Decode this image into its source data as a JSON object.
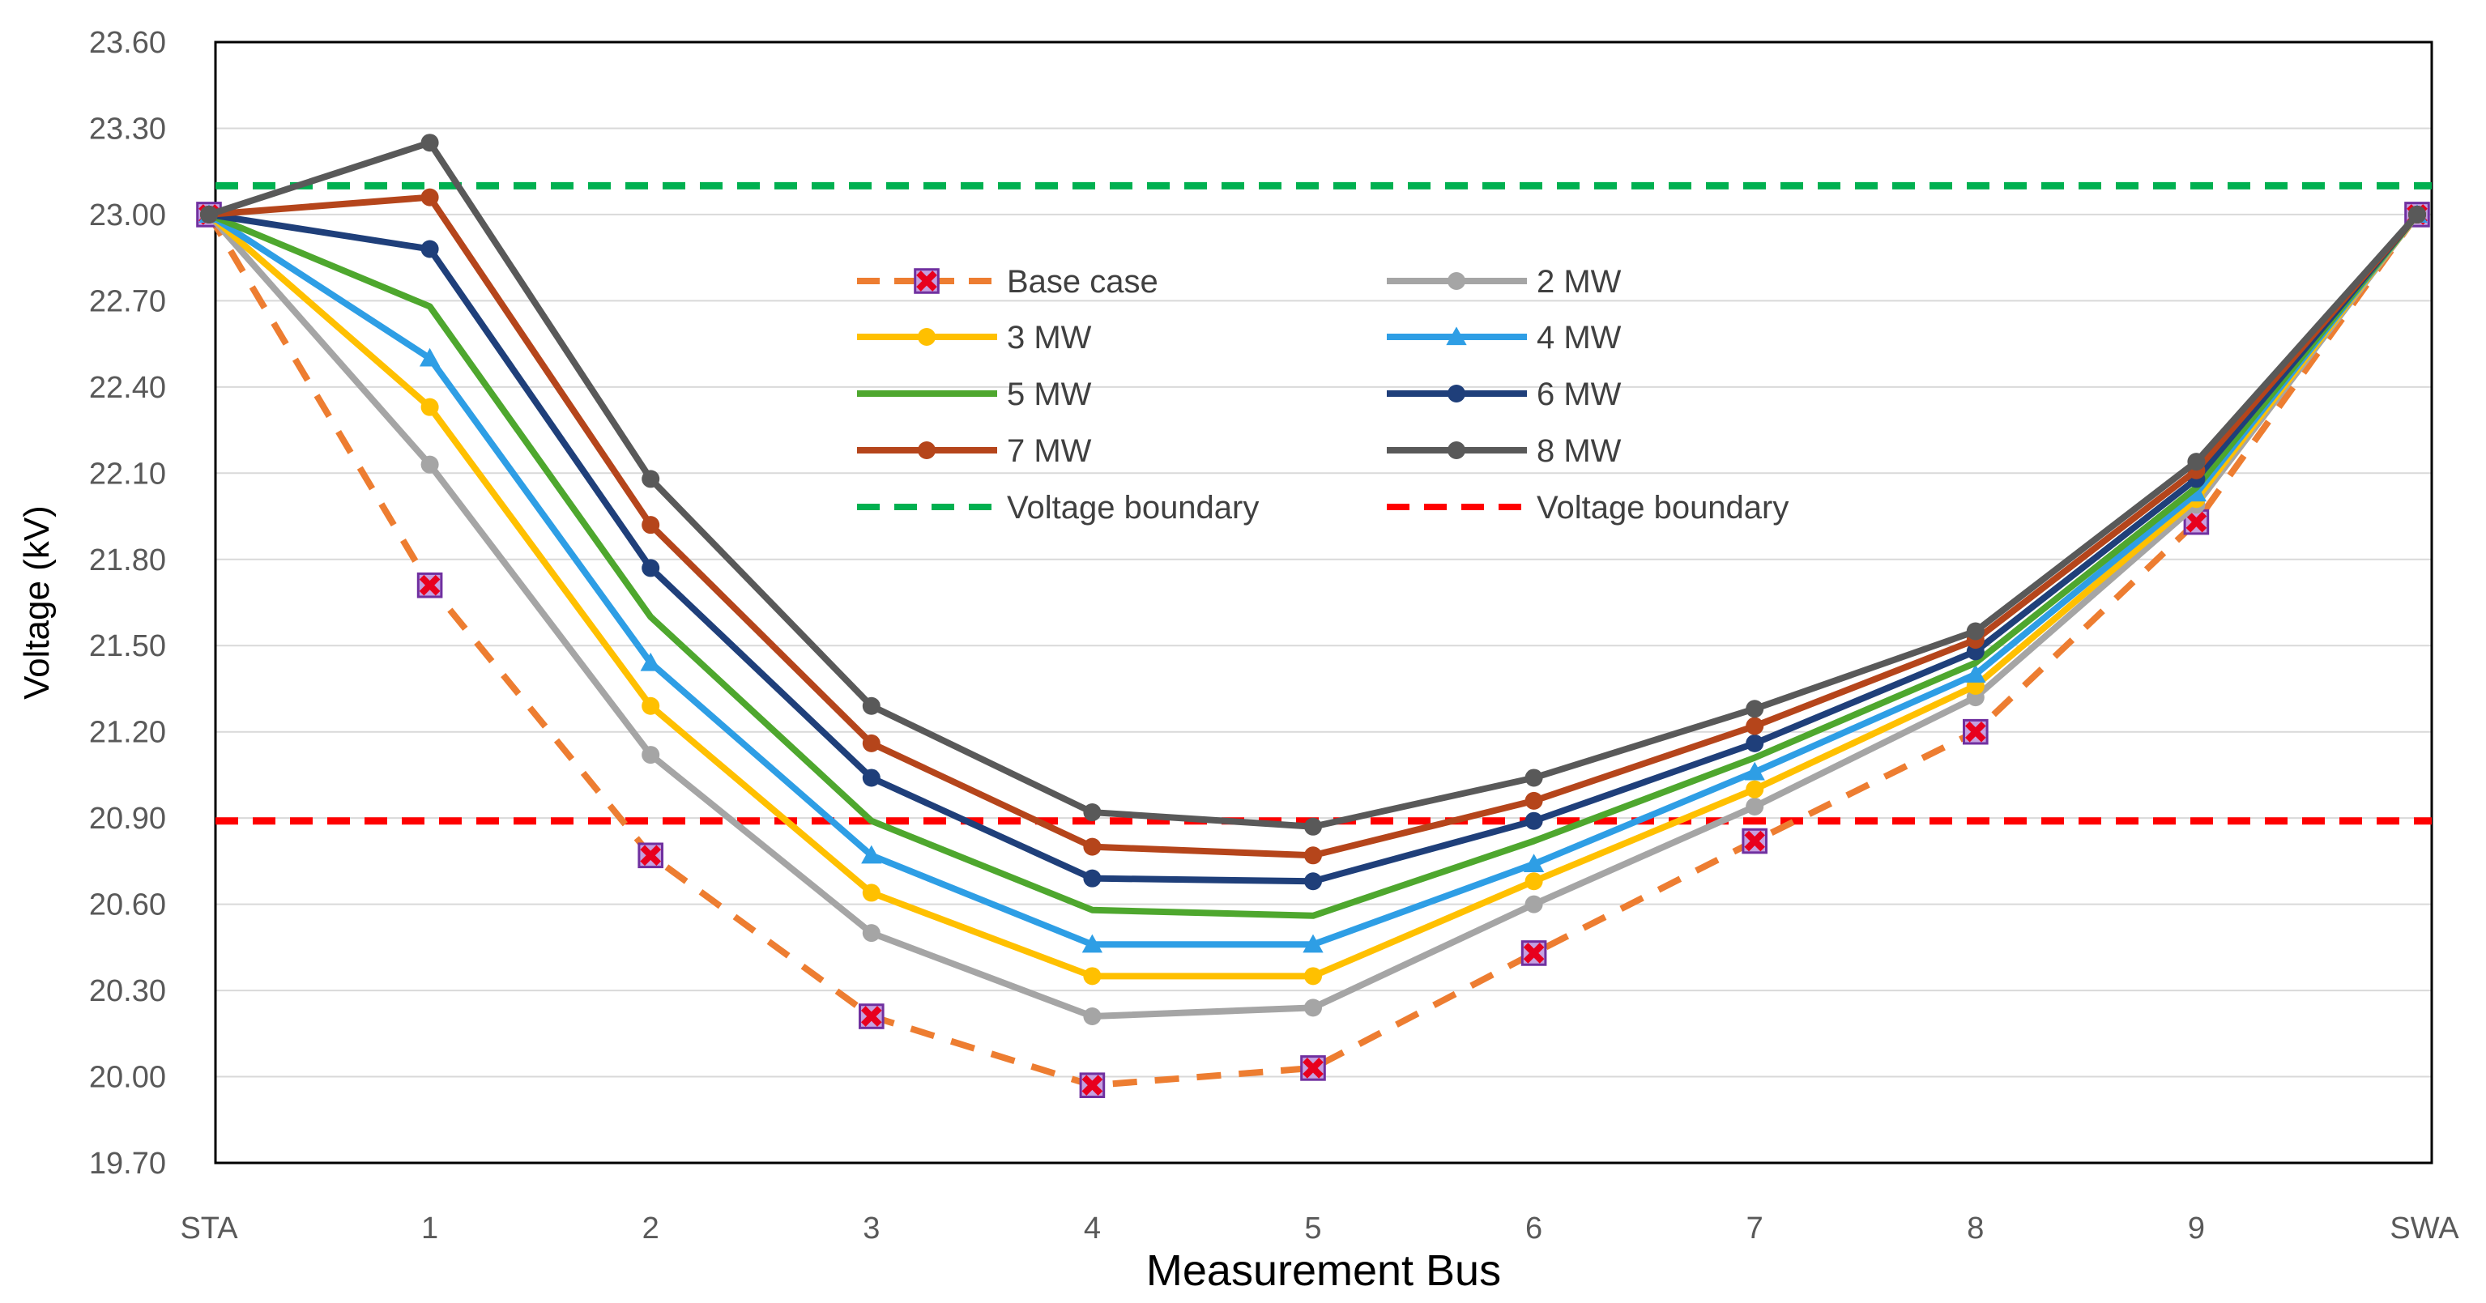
{
  "chart_data": {
    "type": "line",
    "title": "",
    "xlabel": "Measurement Bus",
    "ylabel": "Voltage (kV)",
    "categories": [
      "STA",
      "1",
      "2",
      "3",
      "4",
      "5",
      "6",
      "7",
      "8",
      "9",
      "SWA"
    ],
    "ylim": [
      19.7,
      23.6
    ],
    "yticks": [
      "19.70",
      "20.00",
      "20.30",
      "20.60",
      "20.90",
      "21.20",
      "21.50",
      "21.80",
      "22.10",
      "22.40",
      "22.70",
      "23.00",
      "23.30",
      "23.60"
    ],
    "grid": true,
    "legend_position": "center-top",
    "series": [
      {
        "name": "Base case",
        "color": "#ED7D31",
        "dash": true,
        "marker": "x-square",
        "values": [
          23.0,
          21.71,
          20.77,
          20.21,
          19.97,
          20.03,
          20.43,
          20.82,
          21.2,
          21.93,
          23.0
        ]
      },
      {
        "name": "2 MW",
        "color": "#A5A5A5",
        "dash": false,
        "marker": "circle",
        "values": [
          23.0,
          22.13,
          21.12,
          20.5,
          20.21,
          20.24,
          20.6,
          20.94,
          21.32,
          21.99,
          23.0
        ]
      },
      {
        "name": "3 MW",
        "color": "#FFC000",
        "dash": false,
        "marker": "circle",
        "values": [
          23.0,
          22.33,
          21.29,
          20.64,
          20.35,
          20.35,
          20.68,
          21.0,
          21.36,
          22.01,
          23.0
        ]
      },
      {
        "name": "4 MW",
        "color": "#2E9EE5",
        "dash": false,
        "marker": "triangle",
        "values": [
          23.0,
          22.5,
          21.44,
          20.77,
          20.46,
          20.46,
          20.74,
          21.06,
          21.4,
          22.03,
          23.0
        ]
      },
      {
        "name": "5 MW",
        "color": "#4EA72E",
        "dash": false,
        "marker": "none",
        "values": [
          23.0,
          22.68,
          21.6,
          20.89,
          20.58,
          20.56,
          20.82,
          21.11,
          21.44,
          22.05,
          23.0
        ]
      },
      {
        "name": "6 MW",
        "color": "#1F3F7A",
        "dash": false,
        "marker": "circle",
        "values": [
          23.0,
          22.88,
          21.77,
          21.04,
          20.69,
          20.68,
          20.89,
          21.16,
          21.48,
          22.08,
          23.0
        ]
      },
      {
        "name": "7 MW",
        "color": "#B5451B",
        "dash": false,
        "marker": "circle",
        "values": [
          23.0,
          23.06,
          21.92,
          21.16,
          20.8,
          20.77,
          20.96,
          21.22,
          21.52,
          22.11,
          23.0
        ]
      },
      {
        "name": "8 MW",
        "color": "#595959",
        "dash": false,
        "marker": "circle",
        "values": [
          23.0,
          23.25,
          22.08,
          21.29,
          20.92,
          20.87,
          21.04,
          21.28,
          21.55,
          22.14,
          23.0
        ]
      }
    ],
    "reference_lines": [
      {
        "name": "Voltage boundary",
        "color": "#00B050",
        "value": 23.1
      },
      {
        "name": "Voltage boundary",
        "color": "#FF0000",
        "value": 20.89
      }
    ],
    "legend": [
      "Base case",
      "2 MW",
      "3 MW",
      "4 MW",
      "5 MW",
      "6 MW",
      "7 MW",
      "8 MW",
      "Voltage boundary",
      "Voltage boundary"
    ]
  }
}
